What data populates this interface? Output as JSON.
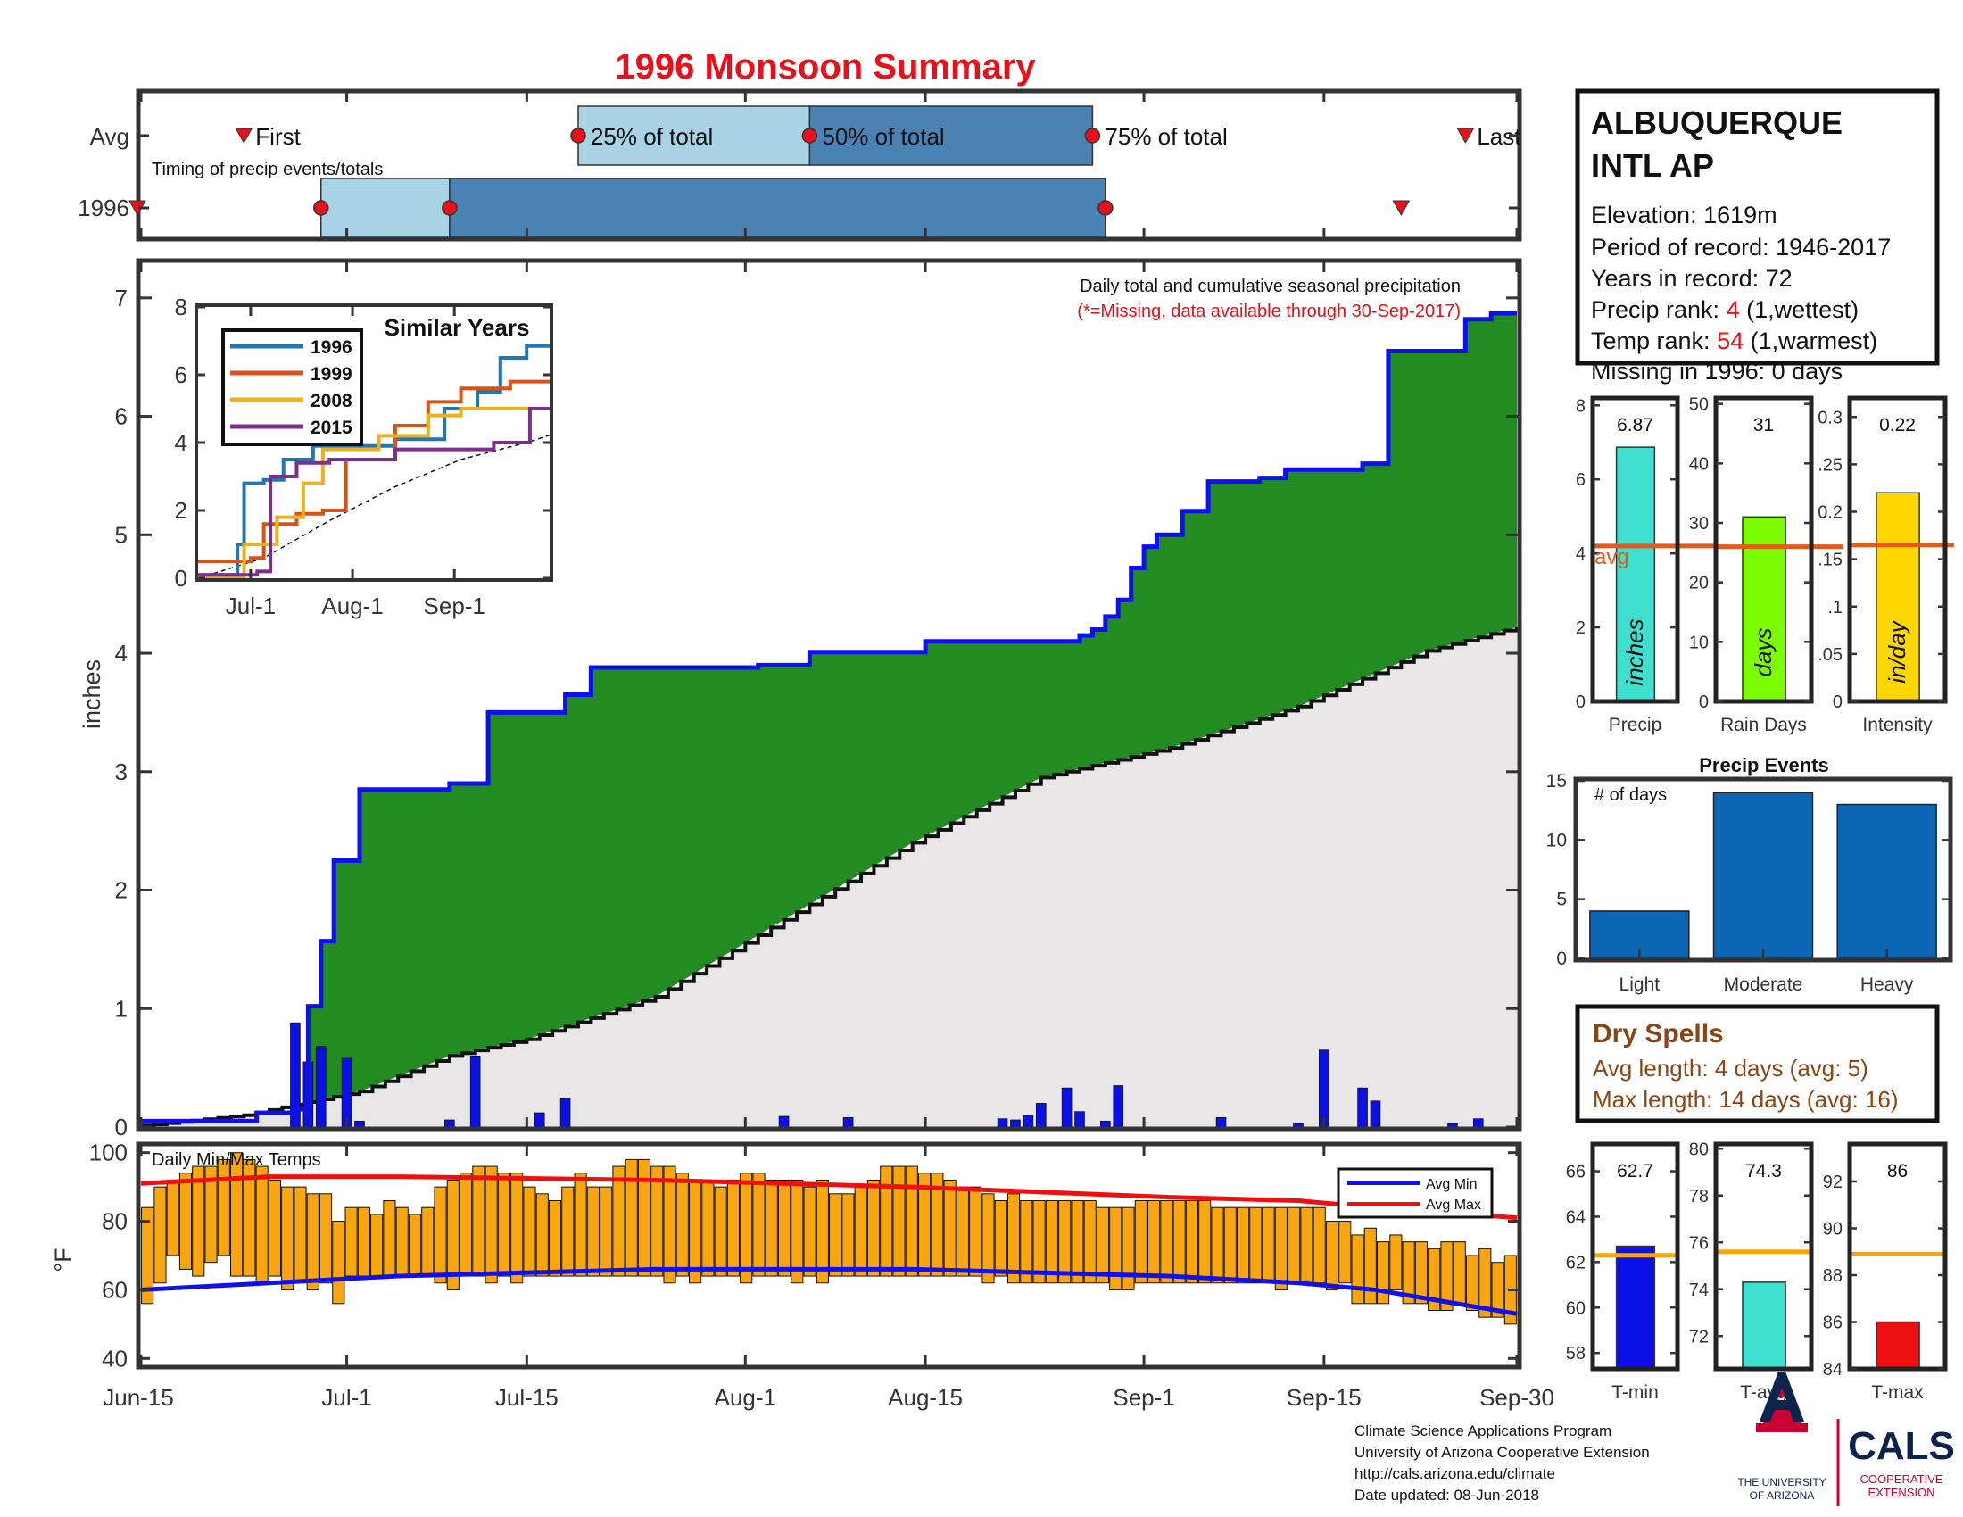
{
  "title": "1996 Monsoon Summary",
  "timing": {
    "label": "Timing of precip events/totals",
    "row_avg": "Avg",
    "row_year": "1996",
    "first": "First",
    "p25": "25% of total",
    "p50": "50% of total",
    "p75": "75% of total",
    "last": "Last",
    "avg_points": {
      "first": "Jun-23",
      "p25": "Jul-19",
      "p50": "Aug-6",
      "p75": "Aug-28",
      "last": "Sep-26"
    },
    "year_points": {
      "first": "Jun-15",
      "p25": "Jun-29",
      "p50": "Jul-9",
      "p75": "Aug-29",
      "last": "Sep-21"
    }
  },
  "station": {
    "name_line1": "ALBUQUERQUE",
    "name_line2": "INTL AP",
    "elevation": "Elevation: 1619m",
    "period": "Period of record: 1946-2017",
    "years": "Years in record: 72",
    "precip_rank_prefix": "Precip rank: ",
    "precip_rank_value": "4",
    "precip_rank_suffix": " (1,wettest)",
    "temp_rank_prefix": "Temp rank: ",
    "temp_rank_value": "54",
    "temp_rank_suffix": " (1,warmest)",
    "missing": "Missing in 1996: 0 days"
  },
  "main_chart": {
    "note1": "Daily total and cumulative seasonal precipitation",
    "note2": "(*=Missing, data available through 30-Sep-2017)",
    "ylabel": "inches"
  },
  "inset": {
    "title": "Similar Years"
  },
  "temp_chart": {
    "title": "Daily Min/Max Temps",
    "ylabel": "°F",
    "legend_min": "Avg Min",
    "legend_max": "Avg Max"
  },
  "precip_events": {
    "title": "Precip Events",
    "note": "# of days"
  },
  "dry_spells": {
    "title": "Dry Spells",
    "avg_length": "Avg length: 4 days (avg: 5)",
    "max_length": "Max length: 14 days (avg: 16)"
  },
  "footer": {
    "line1": "Climate Science Applications Program",
    "line2": "University of Arizona Cooperative Extension",
    "line3": "http://cals.arizona.edu/climate",
    "line4": " Date updated: 08-Jun-2018",
    "ua_line1": "THE UNIVERSITY",
    "ua_line2": "OF ARIZONA",
    "cals": "CALS",
    "cals_sub1": "COOPERATIVE",
    "cals_sub2": "EXTENSION"
  },
  "colors": {
    "title_red": "#e8101a",
    "green_fill": "#228b22",
    "cumulative_blue": "#1010ee",
    "avg_fill": "#e8e6e6",
    "light_blue": "#a9d3e4",
    "steel_blue": "#4a82b4",
    "bar_orange": "#f8a510",
    "dry_brown": "#8b4513",
    "avg_line": "#e25b1a"
  },
  "chart_data": [
    {
      "type": "area",
      "name": "main",
      "ylabel": "inches",
      "x_ticks": [
        "Jun-15",
        "Jul-1",
        "Jul-15",
        "Aug-1",
        "Aug-15",
        "Sep-1",
        "Sep-15",
        "Sep-30"
      ],
      "ylim": [
        0,
        7.3
      ],
      "y_ticks": [
        0,
        1,
        2,
        3,
        4,
        5,
        6,
        7
      ],
      "cumulative_1996": [
        [
          0,
          0.05
        ],
        [
          9,
          0.12
        ],
        [
          12,
          0.15
        ],
        [
          13,
          1.02
        ],
        [
          14,
          1.57
        ],
        [
          15,
          2.25
        ],
        [
          17,
          2.85
        ],
        [
          24,
          2.9
        ],
        [
          27,
          3.5
        ],
        [
          33,
          3.65
        ],
        [
          35,
          3.88
        ],
        [
          48,
          3.9
        ],
        [
          52,
          4.01
        ],
        [
          61,
          4.1
        ],
        [
          73,
          4.15
        ],
        [
          74,
          4.2
        ],
        [
          75,
          4.31
        ],
        [
          76,
          4.45
        ],
        [
          77,
          4.72
        ],
        [
          78,
          4.9
        ],
        [
          79,
          5.0
        ],
        [
          81,
          5.2
        ],
        [
          83,
          5.45
        ],
        [
          87,
          5.48
        ],
        [
          89,
          5.55
        ],
        [
          95,
          5.6
        ],
        [
          97,
          6.55
        ],
        [
          103,
          6.82
        ],
        [
          105,
          6.87
        ],
        [
          107,
          6.87
        ]
      ],
      "average_cumulative": [
        [
          0,
          0.01
        ],
        [
          8,
          0.1
        ],
        [
          17,
          0.3
        ],
        [
          24,
          0.6
        ],
        [
          30,
          0.74
        ],
        [
          40,
          1.1
        ],
        [
          50,
          1.75
        ],
        [
          60,
          2.4
        ],
        [
          70,
          2.95
        ],
        [
          80,
          3.2
        ],
        [
          90,
          3.55
        ],
        [
          100,
          4.02
        ],
        [
          107,
          4.22
        ]
      ],
      "daily_precip": [
        [
          12,
          0.88
        ],
        [
          13,
          0.55
        ],
        [
          14,
          0.68
        ],
        [
          16,
          0.58
        ],
        [
          17,
          0.05
        ],
        [
          24,
          0.06
        ],
        [
          26,
          0.6
        ],
        [
          31,
          0.12
        ],
        [
          33,
          0.24
        ],
        [
          50,
          0.09
        ],
        [
          55,
          0.08
        ],
        [
          67,
          0.07
        ],
        [
          68,
          0.06
        ],
        [
          69,
          0.1
        ],
        [
          70,
          0.2
        ],
        [
          72,
          0.33
        ],
        [
          73,
          0.13
        ],
        [
          75,
          0.05
        ],
        [
          76,
          0.35
        ],
        [
          84,
          0.08
        ],
        [
          90,
          0.03
        ],
        [
          92,
          0.65
        ],
        [
          95,
          0.33
        ],
        [
          96,
          0.22
        ],
        [
          102,
          0.03
        ],
        [
          104,
          0.07
        ]
      ]
    },
    {
      "type": "line",
      "name": "Similar Years",
      "x_ticks": [
        "Jul-1",
        "Aug-1",
        "Sep-1"
      ],
      "ylim": [
        0,
        8
      ],
      "y_ticks": [
        0,
        2,
        4,
        6,
        8
      ],
      "series": [
        {
          "name": "1996",
          "values": [
            [
              0,
              0.1
            ],
            [
              12,
              1.0
            ],
            [
              14,
              2.8
            ],
            [
              20,
              2.9
            ],
            [
              26,
              3.5
            ],
            [
              35,
              3.9
            ],
            [
              60,
              4.1
            ],
            [
              75,
              5.0
            ],
            [
              85,
              5.5
            ],
            [
              92,
              6.5
            ],
            [
              100,
              6.85
            ],
            [
              107,
              6.87
            ]
          ]
        },
        {
          "name": "1999",
          "values": [
            [
              0,
              0.5
            ],
            [
              16,
              0.6
            ],
            [
              20,
              1.6
            ],
            [
              30,
              1.9
            ],
            [
              38,
              2.0
            ],
            [
              45,
              3.5
            ],
            [
              60,
              4.5
            ],
            [
              70,
              5.2
            ],
            [
              80,
              5.6
            ],
            [
              95,
              5.8
            ],
            [
              107,
              5.8
            ]
          ]
        },
        {
          "name": "2008",
          "values": [
            [
              0,
              0.05
            ],
            [
              14,
              1.0
            ],
            [
              24,
              1.8
            ],
            [
              32,
              2.8
            ],
            [
              38,
              3.8
            ],
            [
              55,
              4.2
            ],
            [
              70,
              4.8
            ],
            [
              80,
              5.0
            ],
            [
              107,
              5.0
            ]
          ]
        },
        {
          "name": "2015",
          "values": [
            [
              0,
              0.1
            ],
            [
              18,
              0.2
            ],
            [
              22,
              3.0
            ],
            [
              30,
              3.4
            ],
            [
              40,
              3.5
            ],
            [
              60,
              3.8
            ],
            [
              90,
              4.0
            ],
            [
              100,
              4.0
            ],
            [
              101,
              5.0
            ],
            [
              107,
              5.0
            ]
          ]
        }
      ],
      "average": [
        [
          0,
          0
        ],
        [
          20,
          0.6
        ],
        [
          40,
          1.7
        ],
        [
          60,
          2.7
        ],
        [
          80,
          3.5
        ],
        [
          100,
          4.0
        ],
        [
          107,
          4.22
        ]
      ]
    },
    {
      "type": "bar",
      "name": "Daily Min/Max Temps",
      "ylabel": "°F",
      "ylim": [
        38,
        102
      ],
      "y_ticks": [
        40,
        60,
        80,
        100
      ],
      "daily_min": [
        56,
        62,
        70,
        66,
        64,
        68,
        70,
        64,
        64,
        62,
        64,
        60,
        62,
        60,
        62,
        56,
        64,
        64,
        64,
        64,
        64,
        64,
        64,
        62,
        60,
        64,
        64,
        62,
        64,
        62,
        64,
        64,
        64,
        64,
        64,
        64,
        64,
        64,
        64,
        64,
        64,
        62,
        64,
        62,
        64,
        64,
        64,
        62,
        64,
        64,
        64,
        62,
        64,
        62,
        64,
        64,
        64,
        64,
        64,
        64,
        64,
        64,
        64,
        64,
        64,
        64,
        62,
        64,
        62,
        62,
        62,
        62,
        62,
        62,
        62,
        62,
        60,
        60,
        62,
        62,
        62,
        62,
        62,
        62,
        62,
        62,
        62,
        62,
        62,
        60,
        62,
        62,
        62,
        60,
        62,
        56,
        56,
        56,
        60,
        56,
        56,
        54,
        54,
        56,
        54,
        52,
        52,
        50
      ],
      "daily_max": [
        84,
        90,
        92,
        94,
        96,
        96,
        98,
        100,
        98,
        96,
        92,
        90,
        90,
        88,
        88,
        80,
        84,
        84,
        82,
        86,
        84,
        82,
        84,
        90,
        92,
        94,
        96,
        96,
        94,
        94,
        90,
        88,
        86,
        90,
        94,
        90,
        90,
        96,
        98,
        98,
        96,
        96,
        94,
        92,
        92,
        90,
        92,
        94,
        94,
        92,
        92,
        92,
        90,
        92,
        88,
        88,
        90,
        92,
        96,
        96,
        96,
        94,
        94,
        92,
        90,
        90,
        88,
        86,
        88,
        86,
        86,
        86,
        86,
        86,
        86,
        84,
        84,
        84,
        86,
        86,
        86,
        86,
        86,
        86,
        84,
        84,
        84,
        84,
        84,
        84,
        84,
        84,
        84,
        80,
        80,
        76,
        78,
        74,
        76,
        74,
        74,
        72,
        74,
        74,
        70,
        72,
        68,
        70
      ],
      "avg_min": [
        [
          0,
          60
        ],
        [
          10,
          62
        ],
        [
          20,
          64
        ],
        [
          40,
          66
        ],
        [
          60,
          66
        ],
        [
          80,
          64
        ],
        [
          90,
          62
        ],
        [
          96,
          60
        ],
        [
          107,
          53
        ]
      ],
      "avg_max": [
        [
          0,
          91
        ],
        [
          10,
          93
        ],
        [
          20,
          93
        ],
        [
          40,
          92
        ],
        [
          60,
          90
        ],
        [
          80,
          87
        ],
        [
          90,
          86
        ],
        [
          96,
          84
        ],
        [
          100,
          83
        ],
        [
          107,
          81
        ]
      ]
    },
    {
      "type": "bar",
      "name": "Precip",
      "xlabel": "Precip",
      "value": 6.87,
      "value_label": "6.87",
      "avg": 4.2,
      "avg_label": "avg",
      "ylim": [
        0,
        8.2
      ],
      "y_ticks": [
        0,
        2,
        4,
        6,
        8
      ],
      "unit": "inches"
    },
    {
      "type": "bar",
      "name": "Rain Days",
      "xlabel": "Rain Days",
      "value": 31,
      "value_label": "31",
      "avg": 26,
      "ylim": [
        0,
        51
      ],
      "y_ticks": [
        0,
        10,
        20,
        30,
        40,
        50
      ],
      "unit": "days"
    },
    {
      "type": "bar",
      "name": "Intensity",
      "xlabel": "Intensity",
      "value": 0.22,
      "value_label": "0.22",
      "avg": 0.165,
      "ylim": [
        0,
        0.32
      ],
      "y_tick_labels": [
        "0",
        ".05",
        ".1",
        ".15",
        "0.2",
        ".25",
        "0.3"
      ],
      "y_ticks": [
        0,
        0.05,
        0.1,
        0.15,
        0.2,
        0.25,
        0.3
      ],
      "unit": "in/day"
    },
    {
      "type": "bar",
      "name": "Precip Events",
      "categories": [
        "Light",
        "Moderate",
        "Heavy"
      ],
      "values": [
        4,
        14,
        13
      ],
      "ylim": [
        0,
        15
      ],
      "y_ticks": [
        0,
        5,
        10,
        15
      ]
    },
    {
      "type": "bar",
      "name": "T-min",
      "xlabel": "T-min",
      "value": 62.7,
      "value_label": "62.7",
      "avg": 62.3,
      "ylim": [
        57.3,
        67.2
      ],
      "y_ticks": [
        58,
        60,
        62,
        64,
        66
      ]
    },
    {
      "type": "bar",
      "name": "T-avg",
      "xlabel": "T-avg",
      "value": 74.3,
      "value_label": "74.3",
      "avg": 75.6,
      "ylim": [
        70.6,
        80.2
      ],
      "y_ticks": [
        72,
        74,
        76,
        78,
        80
      ]
    },
    {
      "type": "bar",
      "name": "T-max",
      "xlabel": "T-max",
      "value": 86,
      "value_label": "86",
      "avg": 88.9,
      "ylim": [
        84,
        93.6
      ],
      "y_ticks": [
        84,
        86,
        88,
        90,
        92
      ]
    }
  ]
}
